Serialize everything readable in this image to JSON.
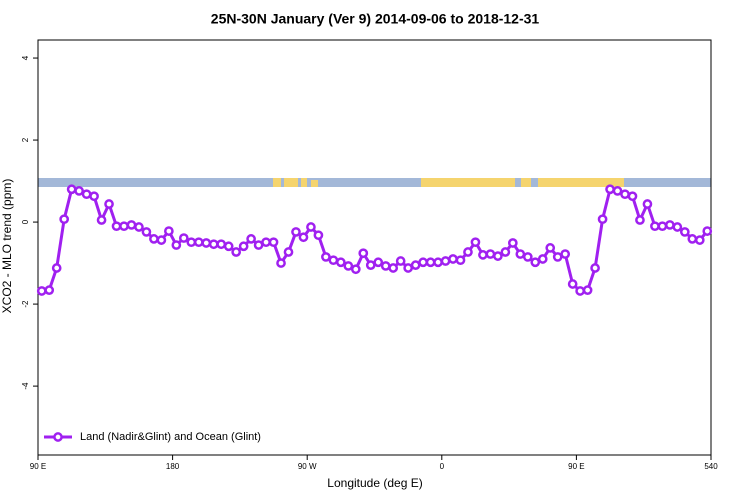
{
  "chart_data": {
    "type": "line",
    "title": "25N-30N January (Ver 9)   2014-09-06 to 2018-12-31",
    "x_label": "Longitude (deg E)",
    "y_label": "XCO2 - MLO trend (ppm)",
    "x": [
      92.5,
      97.5,
      102.5,
      107.5,
      112.5,
      117.5,
      122.5,
      127.5,
      132.5,
      137.5,
      142.5,
      147.5,
      152.5,
      157.5,
      162.5,
      167.5,
      172.5,
      177.5,
      182.5,
      187.5,
      192.5,
      197.5,
      202.5,
      207.5,
      212.5,
      217.5,
      222.5,
      227.5,
      232.5,
      237.5,
      242.5,
      247.5,
      252.5,
      257.5,
      262.5,
      267.5,
      272.5,
      277.5,
      282.5,
      287.5,
      292.5,
      297.5,
      302.5,
      307.5,
      312.5,
      317.5,
      322.5,
      327.5,
      332.5,
      337.5,
      342.5,
      347.5,
      352.5,
      357.5,
      362.5,
      367.5,
      372.5,
      377.5,
      382.5,
      387.5,
      392.5,
      397.5,
      402.5,
      407.5,
      412.5,
      417.5,
      422.5,
      427.5,
      432.5,
      437.5,
      442.5,
      447.5,
      452.5,
      457.5,
      462.5,
      467.5,
      472.5,
      477.5,
      482.5,
      487.5,
      492.5,
      497.5,
      502.5,
      507.5,
      512.5,
      517.5,
      522.5,
      527.5,
      532.5,
      537.5
    ],
    "series": [
      {
        "name": "Land (Nadir&Glint) and Ocean (Glint)",
        "color": "#a020f0",
        "values": [
          -1.68,
          -1.66,
          -1.12,
          0.07,
          0.8,
          0.76,
          0.68,
          0.63,
          0.05,
          0.44,
          -0.1,
          -0.1,
          -0.07,
          -0.12,
          -0.24,
          -0.41,
          -0.44,
          -0.22,
          -0.56,
          -0.39,
          -0.49,
          -0.49,
          -0.51,
          -0.54,
          -0.54,
          -0.59,
          -0.73,
          -0.59,
          -0.41,
          -0.56,
          -0.49,
          -0.49,
          -1.0,
          -0.73,
          -0.24,
          -0.37,
          -0.12,
          -0.32,
          -0.85,
          -0.93,
          -0.98,
          -1.07,
          -1.15,
          -0.76,
          -1.05,
          -0.98,
          -1.07,
          -1.12,
          -0.95,
          -1.12,
          -1.05,
          -0.98,
          -0.98,
          -0.98,
          -0.95,
          -0.9,
          -0.93,
          -0.73,
          -0.49,
          -0.8,
          -0.78,
          -0.83,
          -0.73,
          -0.51,
          -0.78,
          -0.85,
          -0.98,
          -0.9,
          -0.63,
          -0.85,
          -0.78,
          -1.51,
          -1.68,
          -1.66,
          -1.12,
          0.07,
          0.8,
          0.76,
          0.68,
          0.63,
          0.05,
          0.44,
          -0.1,
          -0.1,
          -0.07,
          -0.12,
          -0.24,
          -0.41,
          -0.44,
          -0.22
        ]
      }
    ],
    "xlim": [
      90,
      540
    ],
    "xticks": [
      {
        "value": 90,
        "label": "90 E"
      },
      180,
      {
        "value": 270,
        "label": "90 W"
      },
      {
        "value": 360,
        "label": "0"
      },
      {
        "value": 450,
        "label": "90 E"
      },
      540
    ],
    "ylim": [
      -5.68,
      4.44
    ],
    "yticks": [
      -4,
      -2,
      0,
      2,
      4
    ],
    "legend": "bottom-left"
  }
}
